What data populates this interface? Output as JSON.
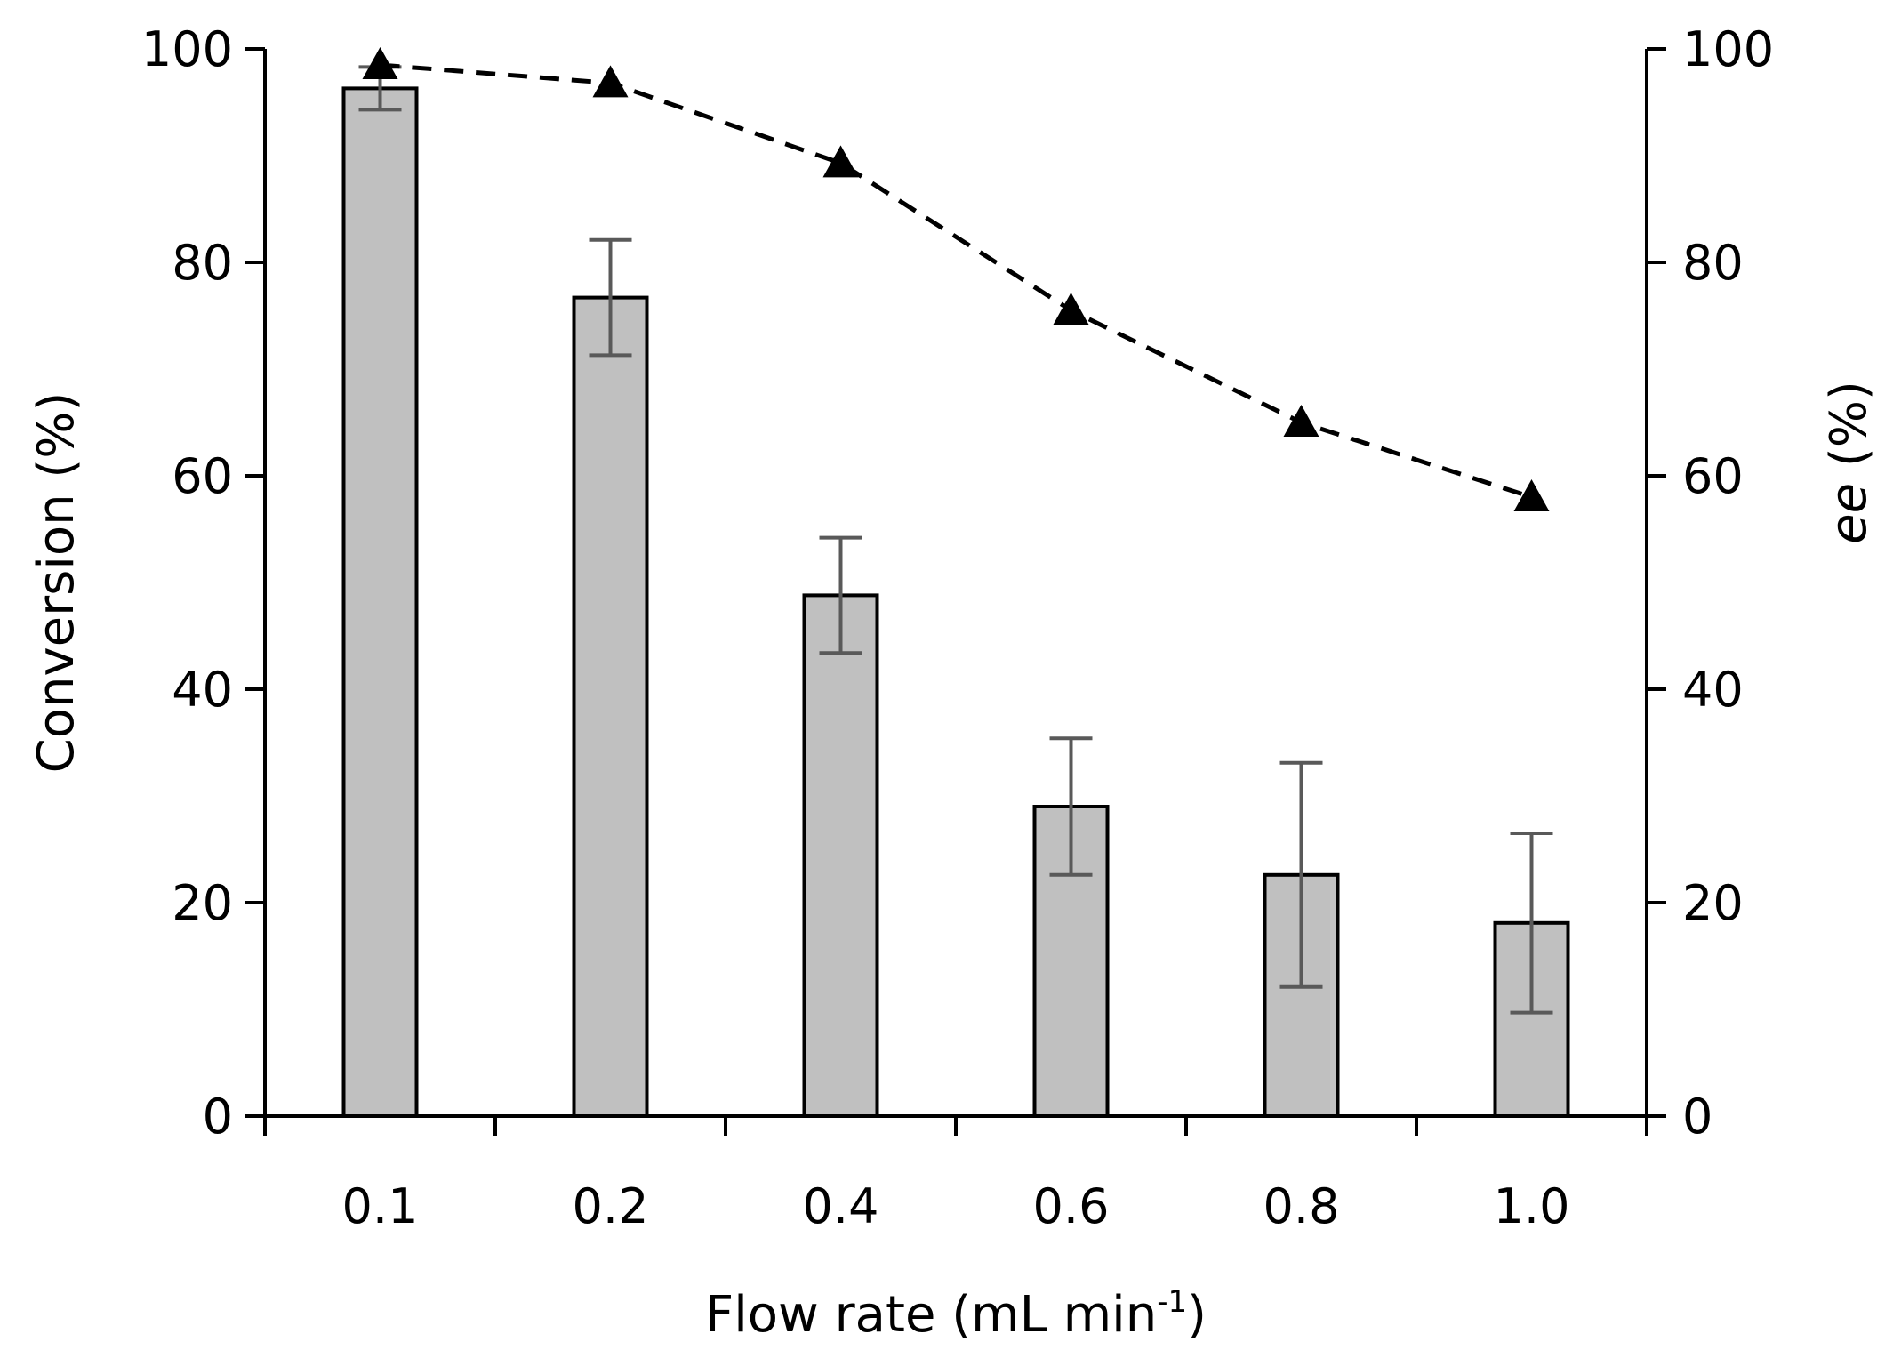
{
  "chart_data": {
    "type": "bar",
    "title": "",
    "categories": [
      "0.1",
      "0.2",
      "0.4",
      "0.6",
      "0.8",
      "1.0"
    ],
    "xlabel": {
      "main": "Flow rate (mL min",
      "superscript": "-1",
      "suffix": ")"
    },
    "ylabel_left": "Conversion (%)",
    "ylabel_right": {
      "italic": "ee",
      "suffix": " (%)"
    },
    "ylim_left": [
      0,
      100
    ],
    "ylim_right": [
      0,
      100
    ],
    "yticks": [
      0,
      20,
      40,
      60,
      80,
      100
    ],
    "series": [
      {
        "name": "Conversion",
        "kind": "bar",
        "axis": "left",
        "values": [
          96.3,
          76.7,
          48.8,
          29.0,
          22.6,
          18.1
        ],
        "error": [
          2.0,
          5.4,
          5.4,
          6.4,
          10.5,
          8.4
        ],
        "fill": "#c0c0c0",
        "stroke": "#000000",
        "error_color": "#595959"
      },
      {
        "name": "ee",
        "kind": "line",
        "axis": "right",
        "values": [
          98.5,
          96.8,
          89.3,
          75.5,
          65.0,
          58.0
        ],
        "marker": "triangle",
        "line_style": "dashed",
        "color": "#000000"
      }
    ]
  }
}
